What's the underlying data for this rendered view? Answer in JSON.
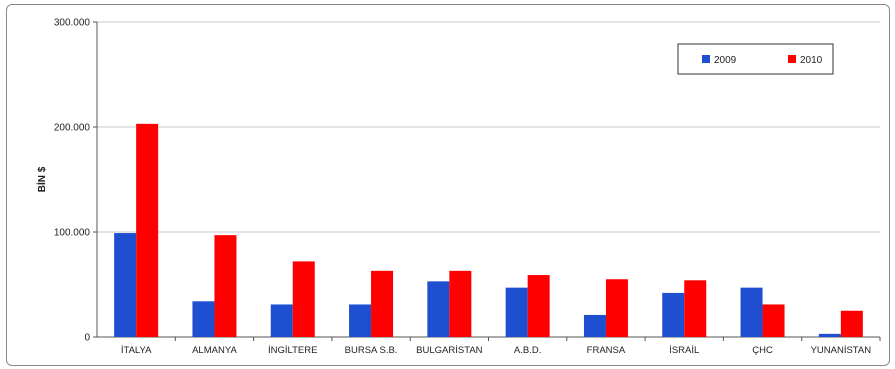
{
  "chart_data": {
    "type": "bar",
    "title": "",
    "xlabel": "",
    "ylabel": "BİN $",
    "ylim": [
      0,
      300000
    ],
    "yticks": [
      {
        "value": 0,
        "label": "0"
      },
      {
        "value": 100000,
        "label": "100.000"
      },
      {
        "value": 200000,
        "label": "200.000"
      },
      {
        "value": 300000,
        "label": "300.000"
      }
    ],
    "grid": true,
    "legend_position": "top-right",
    "categories": [
      "İTALYA",
      "ALMANYA",
      "İNGİLTERE",
      "BURSA S.B.",
      "BULGARİSTAN",
      "A.B.D.",
      "FRANSA",
      "İSRAİL",
      "ÇHC",
      "YUNANİSTAN"
    ],
    "series": [
      {
        "name": "2009",
        "color": "#1f4fd1",
        "values": [
          99000,
          34000,
          31000,
          31000,
          53000,
          47000,
          21000,
          42000,
          47000,
          3000
        ]
      },
      {
        "name": "2010",
        "color": "#ff0000",
        "values": [
          203000,
          97000,
          72000,
          63000,
          63000,
          59000,
          55000,
          54000,
          31000,
          25000
        ]
      }
    ]
  }
}
